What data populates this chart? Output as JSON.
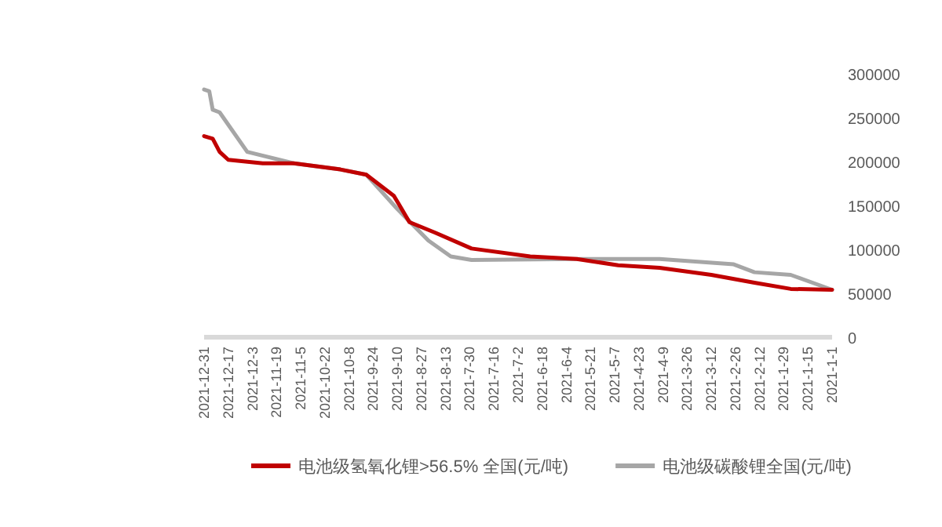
{
  "chart_data": {
    "type": "line",
    "xlim": [
      "2021-12-31",
      "2021-01-01"
    ],
    "xticks": [
      {
        "value": "2021-12-31",
        "label": "2021-12-31"
      },
      {
        "value": "2021-12-17",
        "label": "2021-12-17"
      },
      {
        "value": "2021-12-03",
        "label": "2021-12-3"
      },
      {
        "value": "2021-11-19",
        "label": "2021-11-19"
      },
      {
        "value": "2021-11-05",
        "label": "2021-11-5"
      },
      {
        "value": "2021-10-22",
        "label": "2021-10-22"
      },
      {
        "value": "2021-10-08",
        "label": "2021-10-8"
      },
      {
        "value": "2021-09-24",
        "label": "2021-9-24"
      },
      {
        "value": "2021-09-10",
        "label": "2021-9-10"
      },
      {
        "value": "2021-08-27",
        "label": "2021-8-27"
      },
      {
        "value": "2021-08-13",
        "label": "2021-8-13"
      },
      {
        "value": "2021-07-30",
        "label": "2021-7-30"
      },
      {
        "value": "2021-07-16",
        "label": "2021-7-16"
      },
      {
        "value": "2021-07-02",
        "label": "2021-7-2"
      },
      {
        "value": "2021-06-18",
        "label": "2021-6-18"
      },
      {
        "value": "2021-06-04",
        "label": "2021-6-4"
      },
      {
        "value": "2021-05-21",
        "label": "2021-5-21"
      },
      {
        "value": "2021-05-07",
        "label": "2021-5-7"
      },
      {
        "value": "2021-04-23",
        "label": "2021-4-23"
      },
      {
        "value": "2021-04-09",
        "label": "2021-4-9"
      },
      {
        "value": "2021-03-26",
        "label": "2021-3-26"
      },
      {
        "value": "2021-03-12",
        "label": "2021-3-12"
      },
      {
        "value": "2021-02-26",
        "label": "2021-2-26"
      },
      {
        "value": "2021-02-12",
        "label": "2021-2-12"
      },
      {
        "value": "2021-01-29",
        "label": "2021-1-29"
      },
      {
        "value": "2021-01-15",
        "label": "2021-1-15"
      },
      {
        "value": "2021-01-01",
        "label": "2021-1-1"
      }
    ],
    "ylim": [
      0,
      300000
    ],
    "yticks": [
      0,
      50000,
      100000,
      150000,
      200000,
      250000,
      300000
    ],
    "legend": "bottom",
    "series": [
      {
        "name": "电池级氢氧化锂>56.5% 全国(元/吨)",
        "color": "#c00000",
        "x": [
          "2021-01-01",
          "2021-01-25",
          "2021-02-15",
          "2021-03-12",
          "2021-04-11",
          "2021-05-05",
          "2021-05-29",
          "2021-06-25",
          "2021-07-29",
          "2021-08-19",
          "2021-09-03",
          "2021-09-12",
          "2021-09-28",
          "2021-10-13",
          "2021-11-09",
          "2021-11-27",
          "2021-12-17",
          "2021-12-22",
          "2021-12-26",
          "2021-12-31"
        ],
        "values": [
          54000,
          55000,
          62000,
          71000,
          79000,
          82000,
          89000,
          92000,
          101000,
          119000,
          131000,
          161000,
          185000,
          191000,
          198000,
          198000,
          202000,
          211000,
          226000,
          229000
        ]
      },
      {
        "name": "电池级碳酸锂全国(元/吨)",
        "color": "#a6a6a6",
        "x": [
          "2021-01-01",
          "2021-01-25",
          "2021-02-15",
          "2021-02-27",
          "2021-04-11",
          "2021-05-29",
          "2021-07-29",
          "2021-08-10",
          "2021-08-23",
          "2021-09-10",
          "2021-09-28",
          "2021-10-13",
          "2021-11-09",
          "2021-12-06",
          "2021-12-22",
          "2021-12-26",
          "2021-12-28",
          "2021-12-31"
        ],
        "values": [
          54000,
          71000,
          74000,
          83000,
          89000,
          89000,
          88000,
          92000,
          110000,
          146000,
          185000,
          191000,
          198000,
          211000,
          256000,
          259000,
          280000,
          282000
        ]
      }
    ]
  }
}
